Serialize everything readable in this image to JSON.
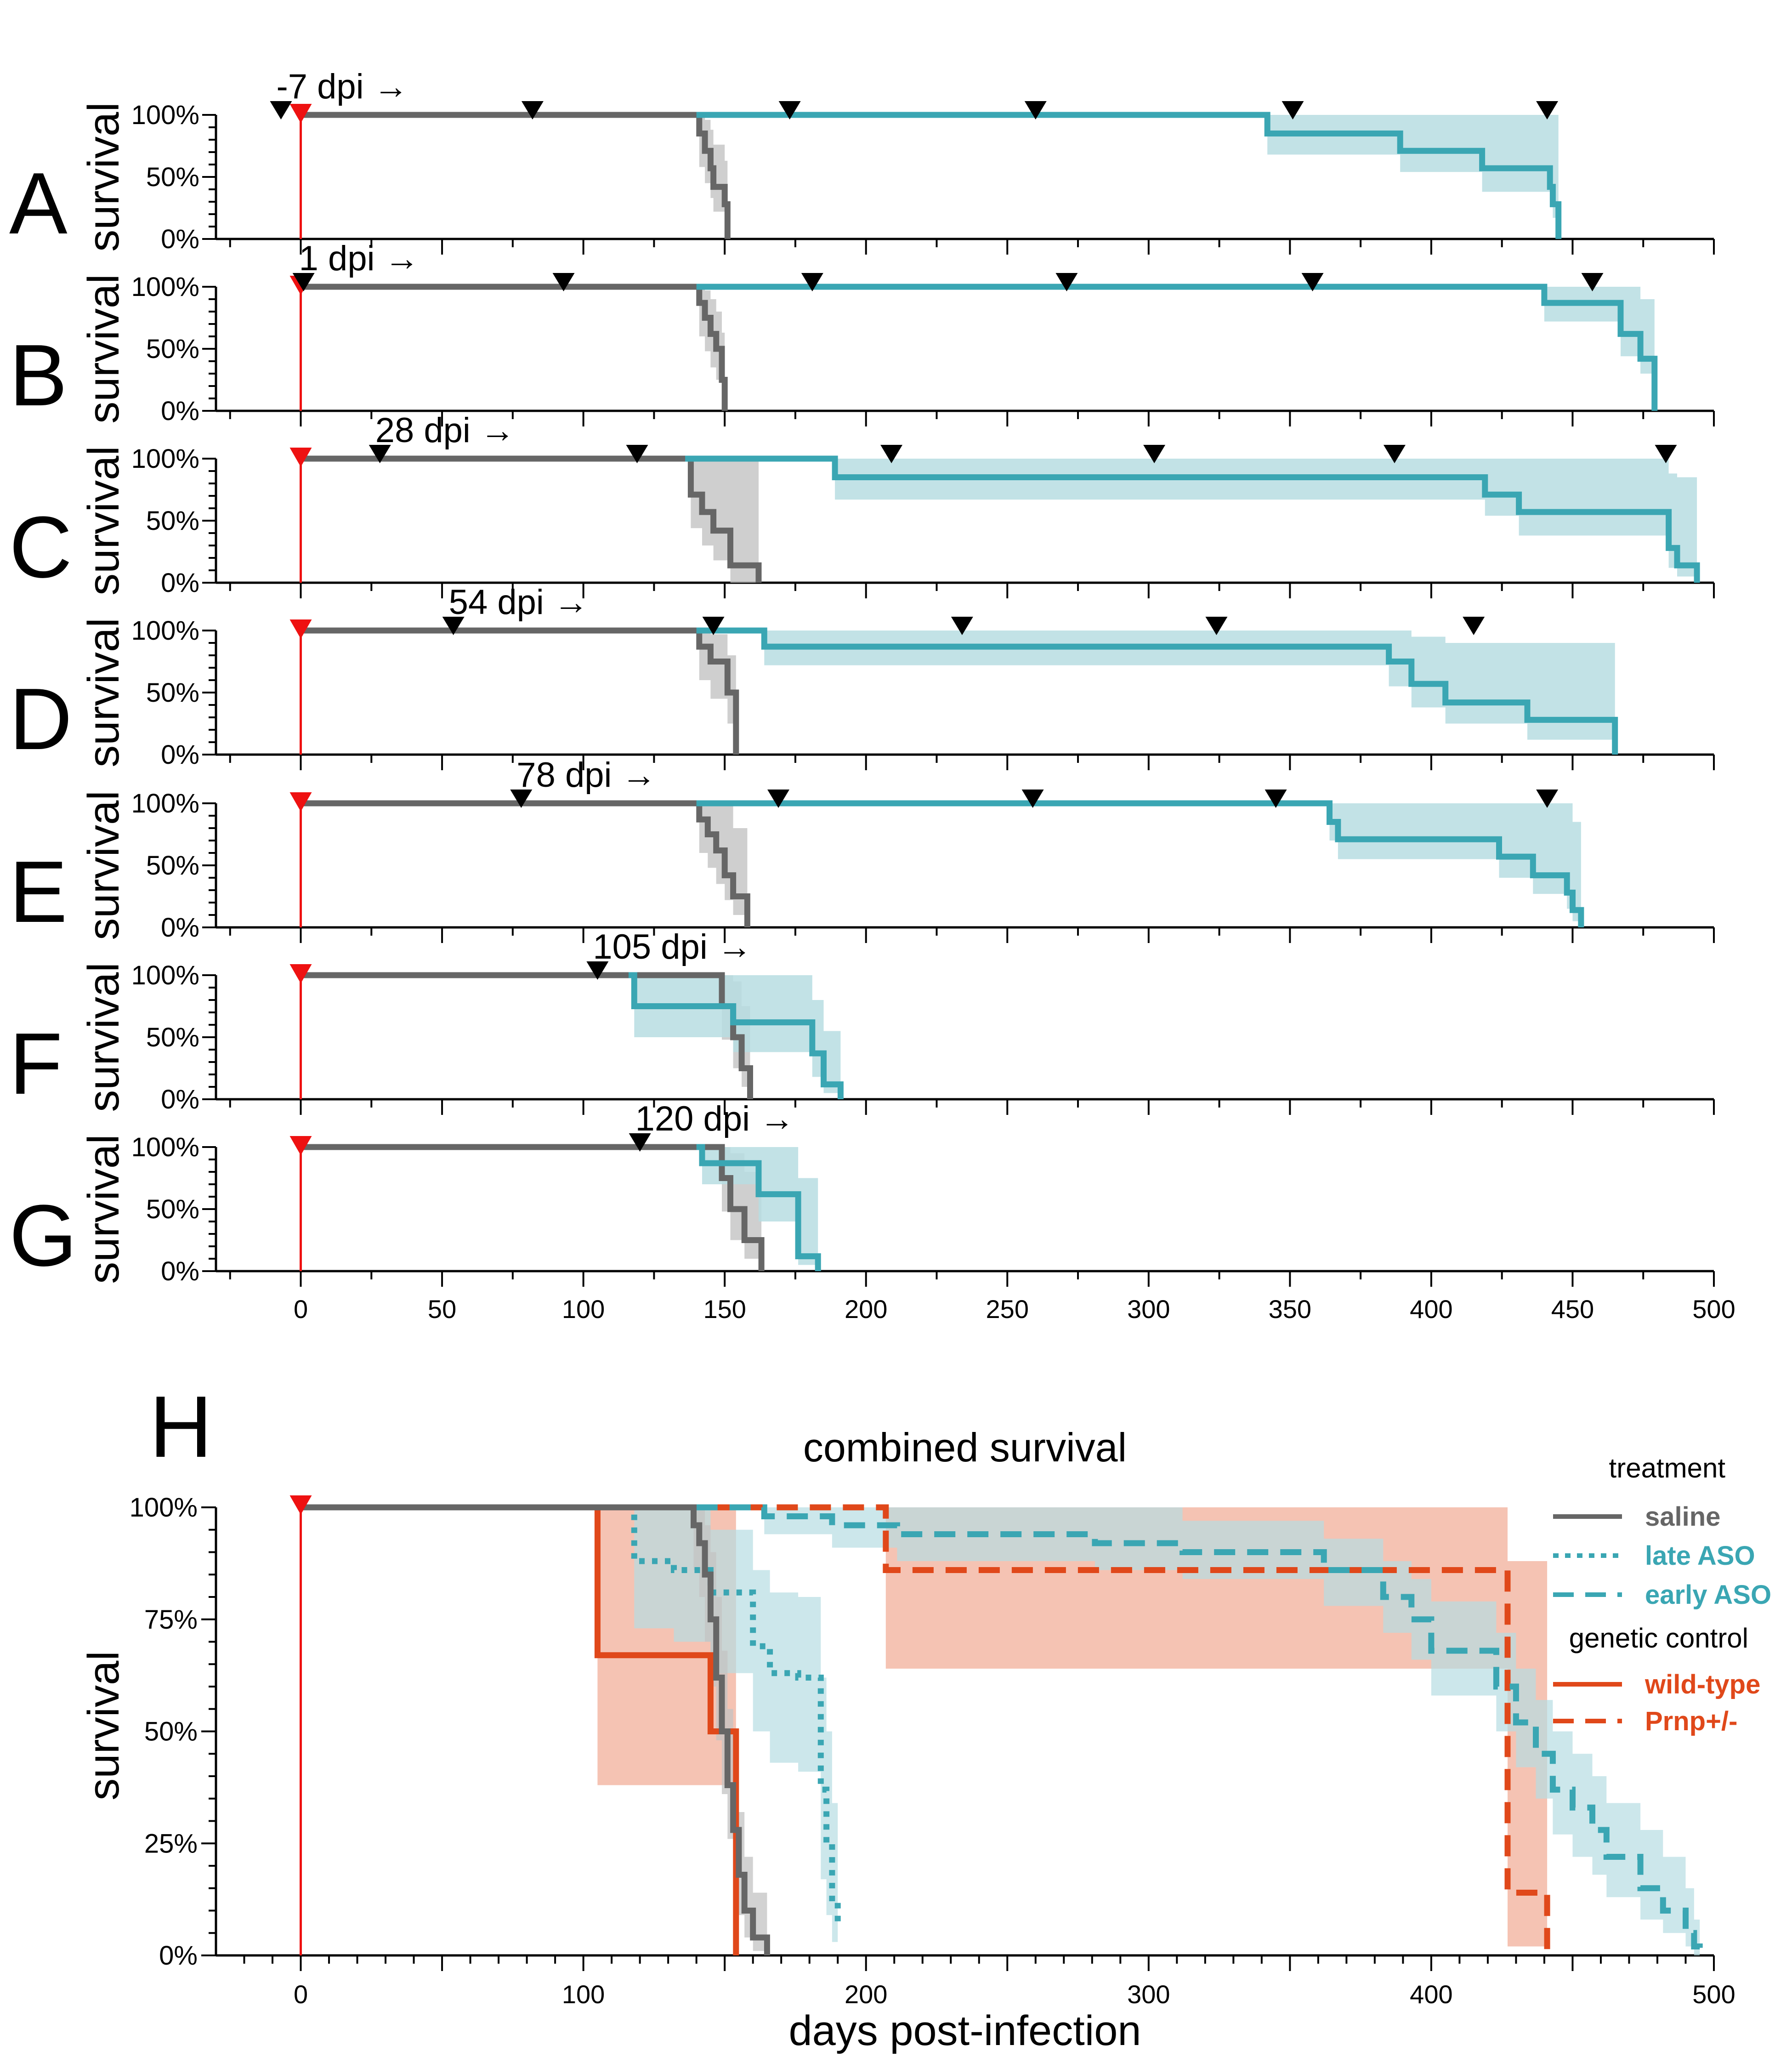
{
  "figure": {
    "x_axis_label": "days post-infection",
    "x_ticks": [
      0,
      50,
      100,
      150,
      200,
      250,
      300,
      350,
      400,
      450,
      500
    ],
    "h_x_ticks": [
      0,
      100,
      200,
      300,
      400,
      500
    ],
    "xlim": [
      -30,
      500
    ]
  },
  "colors": {
    "saline": "#666666",
    "saline_band": "#c3c3c3",
    "aso": "#3aa6b3",
    "aso_band": "#b7dde2",
    "genetic": "#e0481a",
    "genetic_band": "#f2b4a0",
    "infection_marker": "#ee1111"
  },
  "panel_h": {
    "letter": "H",
    "title": "combined survival",
    "ylabel": "survival",
    "y_ticks": [
      "0%",
      "25%",
      "50%",
      "75%",
      "100%"
    ],
    "legend": {
      "treatment_title": "treatment",
      "saline": "saline",
      "late": "late ASO",
      "early": "early ASO",
      "genetic_title": "genetic control",
      "wildtype": "wild-type",
      "prnp": "Prnp+/-"
    }
  },
  "chart_data": [
    {
      "type": "line",
      "panel": "A",
      "ylabel": "survival",
      "y_ticks": [
        "0%",
        "50%",
        "100%"
      ],
      "annotation": "-7 dpi →",
      "treatment_markers_dpi": [
        -7,
        82,
        173,
        260,
        351,
        441
      ],
      "series": [
        {
          "name": "saline",
          "x": [
            0,
            140,
            141,
            143,
            145,
            146,
            150,
            151
          ],
          "y": [
            100,
            100,
            85,
            71,
            57,
            42,
            28,
            0
          ],
          "lower": [
            100,
            100,
            58,
            45,
            33,
            22,
            12,
            0
          ],
          "upper": [
            100,
            100,
            100,
            96,
            88,
            76,
            63,
            0
          ]
        },
        {
          "name": "ASO",
          "x": [
            140,
            280,
            342,
            389,
            418,
            442,
            443,
            445
          ],
          "y": [
            100,
            100,
            85,
            71,
            57,
            42,
            28,
            0
          ],
          "lower": [
            100,
            100,
            68,
            54,
            38,
            27,
            17,
            0
          ],
          "upper": [
            100,
            100,
            100,
            100,
            100,
            100,
            100,
            0
          ]
        }
      ]
    },
    {
      "type": "line",
      "panel": "B",
      "ylabel": "survival",
      "y_ticks": [
        "0%",
        "50%",
        "100%"
      ],
      "annotation": "1 dpi →",
      "treatment_markers_dpi": [
        1,
        93,
        181,
        271,
        358,
        457
      ],
      "series": [
        {
          "name": "saline",
          "x": [
            0,
            140,
            141,
            143,
            145,
            147,
            149,
            150
          ],
          "y": [
            100,
            100,
            87,
            75,
            62,
            50,
            25,
            0
          ],
          "lower": [
            100,
            100,
            60,
            48,
            35,
            25,
            10,
            0
          ],
          "upper": [
            100,
            100,
            100,
            97,
            90,
            80,
            63,
            0
          ]
        },
        {
          "name": "ASO",
          "x": [
            140,
            342,
            440,
            467,
            474,
            479
          ],
          "y": [
            100,
            100,
            87,
            62,
            42,
            0
          ],
          "lower": [
            100,
            100,
            72,
            44,
            30,
            0
          ],
          "upper": [
            100,
            100,
            100,
            100,
            90,
            0
          ]
        }
      ]
    },
    {
      "type": "line",
      "panel": "C",
      "ylabel": "survival",
      "y_ticks": [
        "0%",
        "50%",
        "100%"
      ],
      "annotation": "28 dpi →",
      "treatment_markers_dpi": [
        28,
        119,
        209,
        302,
        387,
        483
      ],
      "series": [
        {
          "name": "saline",
          "x": [
            0,
            136,
            138,
            142,
            146,
            152,
            162
          ],
          "y": [
            100,
            100,
            71,
            57,
            42,
            14,
            0
          ],
          "lower": [
            100,
            100,
            44,
            30,
            18,
            0,
            0
          ],
          "upper": [
            100,
            100,
            100,
            100,
            100,
            100,
            0
          ]
        },
        {
          "name": "ASO",
          "x": [
            136,
            189,
            419,
            431,
            484,
            487,
            494
          ],
          "y": [
            100,
            85,
            71,
            57,
            28,
            14,
            0
          ],
          "lower": [
            100,
            67,
            54,
            38,
            12,
            5,
            0
          ],
          "upper": [
            100,
            100,
            100,
            100,
            88,
            85,
            0
          ]
        }
      ]
    },
    {
      "type": "line",
      "panel": "D",
      "ylabel": "survival",
      "y_ticks": [
        "0%",
        "50%",
        "100%"
      ],
      "annotation": "54 dpi →",
      "treatment_markers_dpi": [
        54,
        146,
        234,
        324,
        415
      ],
      "series": [
        {
          "name": "saline",
          "x": [
            0,
            140,
            141,
            145,
            151,
            154
          ],
          "y": [
            100,
            100,
            87,
            75,
            50,
            0
          ],
          "lower": [
            100,
            100,
            60,
            45,
            25,
            0
          ],
          "upper": [
            100,
            100,
            100,
            97,
            80,
            0
          ]
        },
        {
          "name": "ASO",
          "x": [
            140,
            164,
            385,
            393,
            405,
            434,
            465
          ],
          "y": [
            100,
            87,
            75,
            57,
            42,
            28,
            0
          ],
          "lower": [
            100,
            72,
            55,
            38,
            25,
            12,
            0
          ],
          "upper": [
            100,
            100,
            100,
            95,
            90,
            90,
            0
          ]
        }
      ]
    },
    {
      "type": "line",
      "panel": "E",
      "ylabel": "survival",
      "y_ticks": [
        "0%",
        "50%",
        "100%"
      ],
      "annotation": "78 dpi →",
      "treatment_markers_dpi": [
        78,
        169,
        259,
        345,
        441
      ],
      "series": [
        {
          "name": "saline",
          "x": [
            0,
            140,
            141,
            144,
            147,
            150,
            153,
            158
          ],
          "y": [
            100,
            100,
            87,
            75,
            62,
            42,
            25,
            0
          ],
          "lower": [
            100,
            100,
            60,
            48,
            35,
            22,
            10,
            0
          ],
          "upper": [
            100,
            100,
            100,
            100,
            100,
            100,
            80,
            0
          ]
        },
        {
          "name": "ASO",
          "x": [
            140,
            306,
            364,
            367,
            424,
            436,
            448,
            450,
            453
          ],
          "y": [
            100,
            100,
            85,
            71,
            57,
            42,
            28,
            14,
            0
          ],
          "lower": [
            100,
            100,
            70,
            55,
            40,
            27,
            15,
            5,
            0
          ],
          "upper": [
            100,
            100,
            100,
            100,
            100,
            100,
            100,
            85,
            0
          ]
        }
      ]
    },
    {
      "type": "line",
      "panel": "F",
      "ylabel": "survival",
      "y_ticks": [
        "0%",
        "50%",
        "100%"
      ],
      "annotation": "105 dpi →",
      "treatment_markers_dpi": [
        105
      ],
      "series": [
        {
          "name": "saline",
          "x": [
            0,
            147,
            149,
            153,
            156,
            159
          ],
          "y": [
            100,
            100,
            75,
            50,
            25,
            0
          ],
          "lower": [
            100,
            100,
            48,
            25,
            10,
            0
          ],
          "upper": [
            100,
            100,
            100,
            95,
            75,
            0
          ]
        },
        {
          "name": "ASO",
          "x": [
            116,
            118,
            153,
            181,
            185,
            191
          ],
          "y": [
            100,
            75,
            62,
            37,
            12,
            0
          ],
          "lower": [
            100,
            50,
            38,
            18,
            5,
            0
          ],
          "upper": [
            100,
            100,
            100,
            80,
            55,
            0
          ]
        }
      ]
    },
    {
      "type": "line",
      "panel": "G",
      "ylabel": "survival",
      "y_ticks": [
        "0%",
        "50%",
        "100%"
      ],
      "annotation": "120 dpi →",
      "treatment_markers_dpi": [
        120
      ],
      "series": [
        {
          "name": "saline",
          "x": [
            0,
            147,
            149,
            152,
            157,
            163
          ],
          "y": [
            100,
            100,
            75,
            50,
            25,
            0
          ],
          "lower": [
            100,
            100,
            48,
            25,
            10,
            0
          ],
          "upper": [
            100,
            100,
            100,
            95,
            80,
            0
          ]
        },
        {
          "name": "ASO",
          "x": [
            140,
            142,
            162,
            176,
            183
          ],
          "y": [
            100,
            87,
            62,
            12,
            0
          ],
          "lower": [
            100,
            70,
            40,
            5,
            0
          ],
          "upper": [
            100,
            100,
            100,
            75,
            0
          ]
        }
      ]
    },
    {
      "type": "line",
      "panel": "H",
      "title": "combined survival",
      "xlabel": "days post-infection",
      "ylabel": "survival",
      "ylim": [
        0,
        100
      ],
      "xlim": [
        -30,
        500
      ],
      "series": [
        {
          "name": "saline",
          "style": "solid",
          "color": "#666666",
          "x": [
            0,
            137,
            139,
            141,
            143,
            145,
            147,
            149,
            151,
            153,
            155,
            157,
            160,
            165
          ],
          "y": [
            100,
            100,
            96,
            92,
            85,
            75,
            62,
            50,
            38,
            28,
            18,
            10,
            4,
            0
          ],
          "lower": [
            100,
            100,
            86,
            80,
            70,
            60,
            48,
            36,
            26,
            17,
            9,
            4,
            1,
            0
          ],
          "upper": [
            100,
            100,
            100,
            100,
            96,
            90,
            80,
            68,
            55,
            44,
            32,
            22,
            14,
            0
          ]
        },
        {
          "name": "late ASO",
          "style": "dotted",
          "color": "#3aa6b3",
          "x": [
            116,
            118,
            132,
            145,
            160,
            166,
            176,
            184,
            186,
            188,
            190
          ],
          "y": [
            100,
            88,
            86,
            81,
            69,
            63,
            62,
            37,
            25,
            12,
            6
          ],
          "lower": [
            100,
            73,
            70,
            63,
            50,
            43,
            41,
            17,
            9,
            3,
            2
          ],
          "upper": [
            100,
            100,
            100,
            95,
            86,
            81,
            80,
            62,
            50,
            34,
            23
          ]
        },
        {
          "name": "early ASO",
          "style": "dashed",
          "color": "#3aa6b3",
          "x": [
            140,
            164,
            188,
            211,
            281,
            312,
            362,
            383,
            393,
            400,
            423,
            430,
            437,
            443,
            450,
            457,
            462,
            474,
            482,
            490,
            493,
            495
          ],
          "y": [
            100,
            98,
            96,
            94,
            92,
            90,
            86,
            80,
            75,
            68,
            60,
            52,
            45,
            37,
            33,
            28,
            22,
            15,
            10,
            5,
            2,
            0
          ],
          "lower": [
            100,
            94,
            91,
            88,
            86,
            84,
            78,
            72,
            66,
            58,
            50,
            42,
            35,
            27,
            22,
            18,
            13,
            8,
            5,
            2,
            0,
            0
          ],
          "upper": [
            100,
            100,
            100,
            100,
            100,
            97,
            93,
            88,
            84,
            79,
            72,
            64,
            57,
            50,
            45,
            40,
            34,
            28,
            22,
            15,
            8,
            0
          ]
        },
        {
          "name": "wild-type",
          "style": "solid",
          "color": "#e0481a",
          "x": [
            0,
            105,
            145,
            154
          ],
          "y": [
            100,
            67,
            50,
            0
          ],
          "lower": [
            100,
            38,
            38,
            0
          ],
          "upper": [
            100,
            100,
            100,
            0
          ]
        },
        {
          "name": "Prnp+/-",
          "style": "dashed",
          "color": "#e0481a",
          "x": [
            145,
            207,
            424,
            427,
            441
          ],
          "y": [
            100,
            86,
            86,
            14,
            0
          ],
          "lower": [
            100,
            64,
            64,
            2,
            0
          ],
          "upper": [
            100,
            100,
            100,
            88,
            0
          ]
        }
      ]
    }
  ]
}
